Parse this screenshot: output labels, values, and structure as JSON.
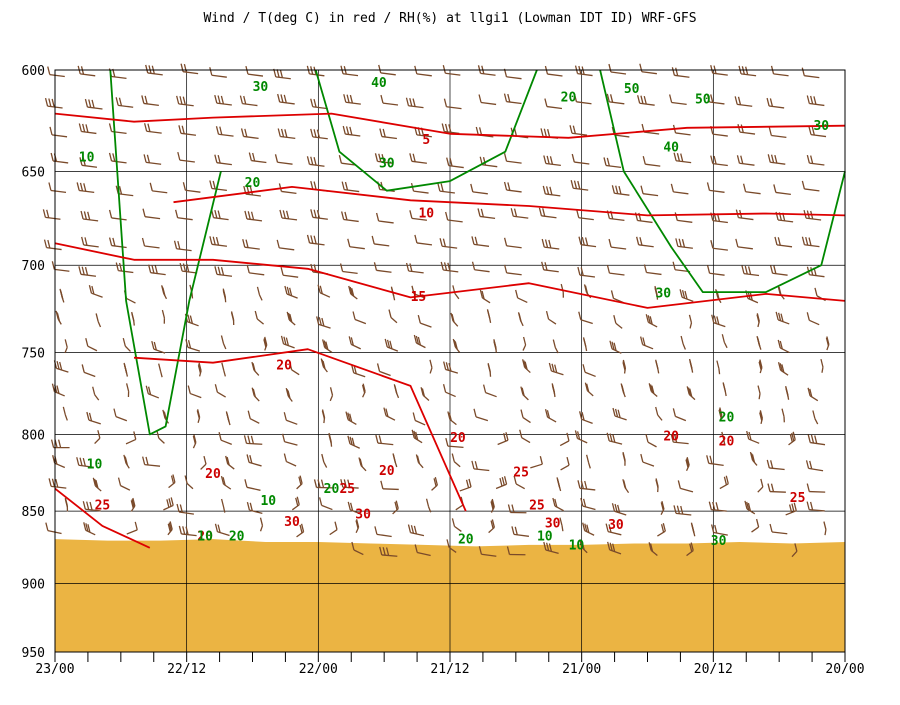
{
  "chart_data": {
    "type": "line",
    "title": "Wind / T(deg C) in red / RH(%) at llgi1 (Lowman IDT ID)  WRF-GFS",
    "y_axis": {
      "label": "",
      "ticks": [
        600,
        650,
        700,
        750,
        800,
        850,
        900,
        950
      ],
      "range": [
        600,
        950
      ],
      "scale": "pressure (hPa), increasing downward"
    },
    "x_axis": {
      "label": "",
      "ticks": [
        "23/00",
        "22/12",
        "22/00",
        "21/12",
        "21/00",
        "20/12",
        "20/00"
      ],
      "direction": "time decreasing to the right"
    },
    "grid": true,
    "colors": {
      "temperature": "#dd0000",
      "rh": "#008800",
      "wind": "#7a4a2a",
      "terrain": "#ebb443"
    },
    "temperature_labels": [
      "5",
      "10",
      "15",
      "20",
      "20",
      "20",
      "20",
      "20",
      "20",
      "25",
      "25",
      "25",
      "25",
      "25",
      "30",
      "30",
      "30",
      "30",
      "20"
    ],
    "rh_labels": [
      "10",
      "30",
      "40",
      "20",
      "50",
      "50",
      "40",
      "30",
      "20",
      "30",
      "30",
      "20",
      "10",
      "10",
      "20",
      "10",
      "20",
      "30",
      "10",
      "10",
      "20"
    ],
    "series": [
      {
        "name": "T 5",
        "values": [
          [
            0,
            621
          ],
          [
            0.1,
            625
          ],
          [
            0.2,
            623
          ],
          [
            0.35,
            621
          ],
          [
            0.5,
            631
          ],
          [
            0.65,
            633
          ],
          [
            0.8,
            628
          ],
          [
            1.0,
            627
          ]
        ]
      },
      {
        "name": "T 10",
        "values": [
          [
            0.15,
            666
          ],
          [
            0.3,
            658
          ],
          [
            0.45,
            665
          ],
          [
            0.6,
            668
          ],
          [
            0.75,
            673
          ],
          [
            0.9,
            672
          ],
          [
            1.0,
            673
          ]
        ]
      },
      {
        "name": "T 15",
        "values": [
          [
            0,
            688
          ],
          [
            0.1,
            697
          ],
          [
            0.2,
            697
          ],
          [
            0.32,
            702
          ],
          [
            0.45,
            718
          ],
          [
            0.6,
            710
          ],
          [
            0.75,
            724
          ],
          [
            0.9,
            716
          ],
          [
            1.0,
            720
          ]
        ]
      },
      {
        "name": "T 20",
        "values": [
          [
            0.1,
            753
          ],
          [
            0.2,
            756
          ],
          [
            0.32,
            748
          ],
          [
            0.45,
            770
          ],
          [
            0.52,
            850
          ]
        ]
      },
      {
        "name": "T 25",
        "values": [
          [
            0,
            835
          ],
          [
            0.06,
            860
          ],
          [
            0.12,
            875
          ]
        ]
      },
      {
        "name": "RH 20",
        "values": [
          [
            0.07,
            600
          ],
          [
            0.09,
            720
          ],
          [
            0.12,
            800
          ],
          [
            0.14,
            795
          ],
          [
            0.17,
            720
          ],
          [
            0.21,
            650
          ]
        ]
      },
      {
        "name": "RH 30",
        "values": [
          [
            0.33,
            600
          ],
          [
            0.36,
            640
          ],
          [
            0.42,
            660
          ],
          [
            0.5,
            655
          ],
          [
            0.57,
            640
          ],
          [
            0.61,
            600
          ]
        ]
      },
      {
        "name": "RH 30 right",
        "values": [
          [
            0.69,
            600
          ],
          [
            0.72,
            650
          ],
          [
            0.78,
            690
          ],
          [
            0.82,
            715
          ],
          [
            0.9,
            715
          ],
          [
            0.97,
            700
          ],
          [
            1.0,
            650
          ]
        ]
      }
    ],
    "surface_pressure_hpa": [
      869,
      870,
      870,
      869,
      871,
      871,
      872,
      873,
      874,
      873,
      873,
      872,
      872,
      871,
      872,
      871
    ]
  }
}
